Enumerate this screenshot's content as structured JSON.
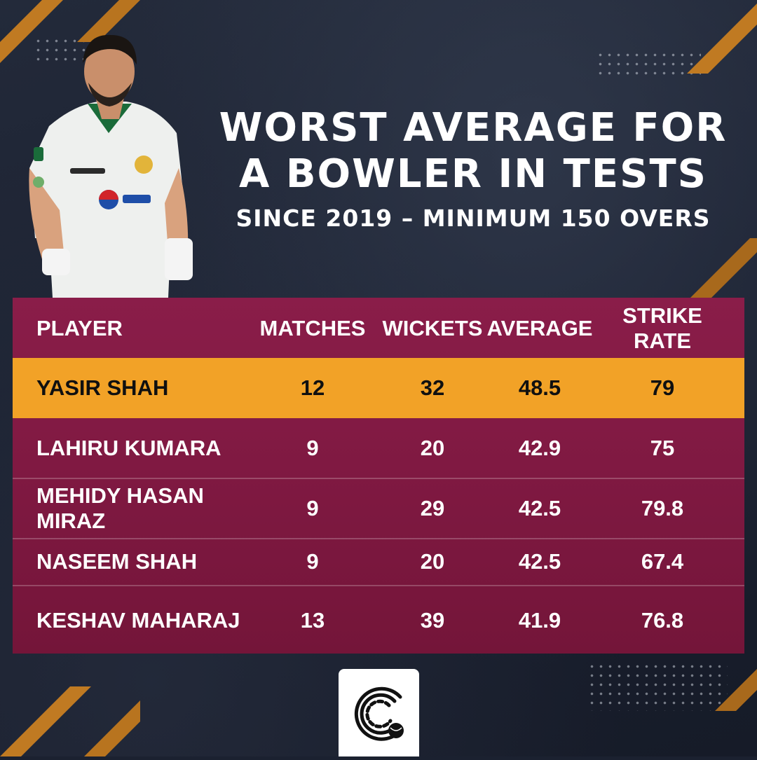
{
  "title_lines": [
    "WORST AVERAGE FOR",
    "A BOWLER IN TESTS"
  ],
  "subtitle": "SINCE 2019 – MINIMUM 150 OVERS",
  "colors": {
    "background": "#1b2130",
    "table": "#821a45",
    "highlight": "#f2a227",
    "stripe": "#c07a22"
  },
  "chart_data": {
    "type": "table",
    "columns": [
      "PLAYER",
      "MATCHES",
      "WICKETS",
      "AVERAGE",
      "STRIKE RATE"
    ],
    "rows": [
      [
        "YASIR SHAH",
        "12",
        "32",
        "48.5",
        "79"
      ],
      [
        "LAHIRU KUMARA",
        "9",
        "20",
        "42.9",
        "75"
      ],
      [
        "MEHIDY HASAN MIRAZ",
        "9",
        "29",
        "42.5",
        "79.8"
      ],
      [
        "NASEEM SHAH",
        "9",
        "20",
        "42.5",
        "67.4"
      ],
      [
        "KESHAV MAHARAJ",
        "13",
        "39",
        "41.9",
        "76.8"
      ]
    ],
    "highlighted_row": 0
  },
  "player_photo_icon": "cricketer-photo",
  "logo_icon": "cricket-ball-logo-icon"
}
